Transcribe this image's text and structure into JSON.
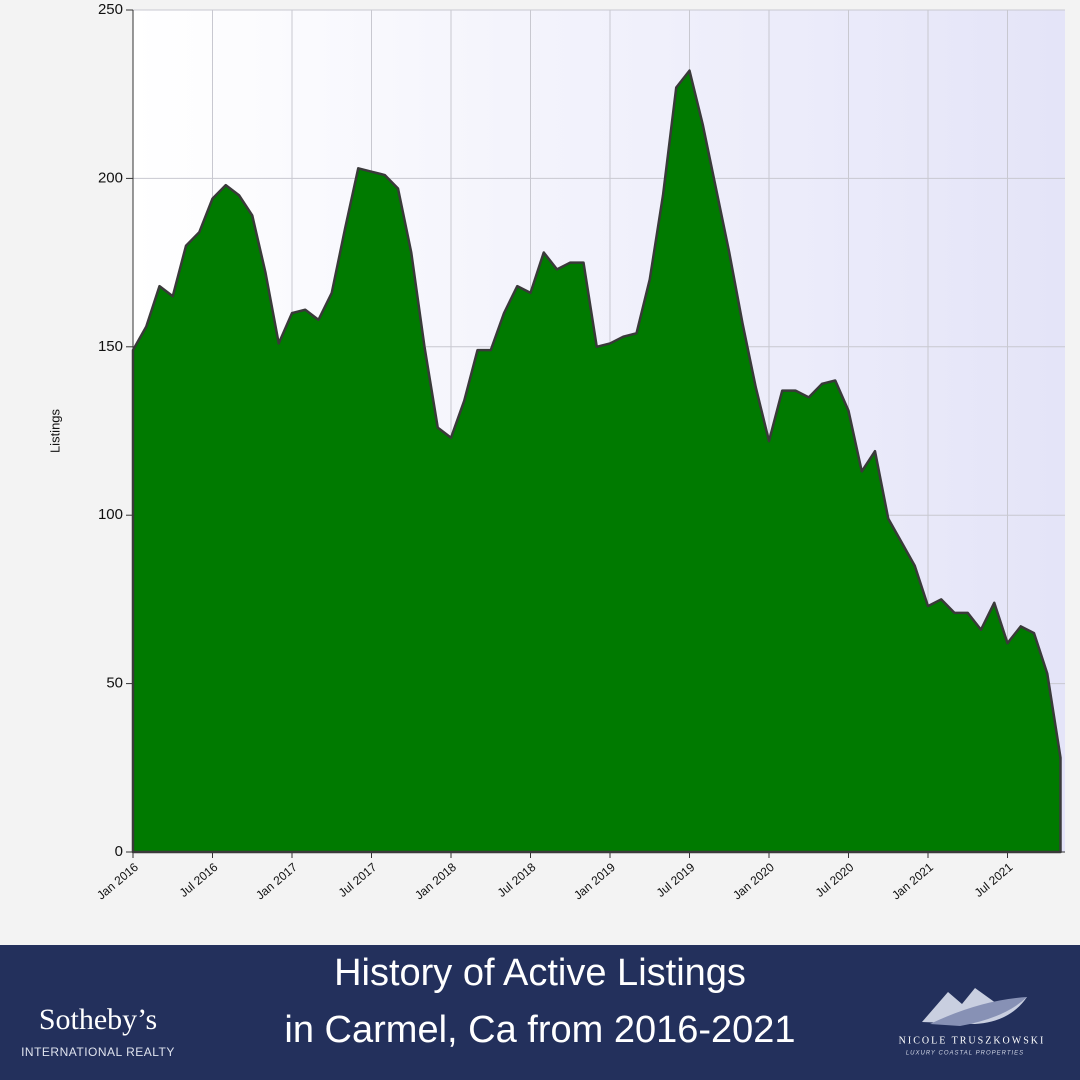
{
  "chart_data": {
    "type": "area",
    "y_label": "Listings",
    "categories": [
      "Jan 2016",
      null,
      null,
      null,
      null,
      null,
      "Jul 2016",
      null,
      null,
      null,
      null,
      null,
      "Jan 2017",
      null,
      null,
      null,
      null,
      null,
      "Jul 2017",
      null,
      null,
      null,
      null,
      null,
      "Jan 2018",
      null,
      null,
      null,
      null,
      null,
      "Jul 2018",
      null,
      null,
      null,
      null,
      null,
      "Jan 2019",
      null,
      null,
      null,
      null,
      null,
      "Jul 2019",
      null,
      null,
      null,
      null,
      null,
      "Jan 2020",
      null,
      null,
      null,
      null,
      null,
      "Jul 2020",
      null,
      null,
      null,
      null,
      null,
      "Jan 2021",
      null,
      null,
      null,
      null,
      null,
      "Jul 2021",
      null,
      null,
      null,
      null
    ],
    "series": [
      {
        "name": "Listings",
        "color": "#007a00",
        "values": [
          149,
          156,
          168,
          165,
          180,
          184,
          194,
          198,
          195,
          189,
          172,
          151,
          160,
          161,
          158,
          166,
          185,
          203,
          202,
          201,
          197,
          178,
          150,
          126,
          123,
          134,
          149,
          149,
          160,
          168,
          166,
          178,
          173,
          175,
          175,
          150,
          151,
          153,
          154,
          170,
          195,
          227,
          232,
          216,
          197,
          178,
          157,
          138,
          122,
          137,
          137,
          135,
          139,
          140,
          131,
          113,
          119,
          99,
          92,
          85,
          73,
          75,
          71,
          71,
          66,
          74,
          62,
          67,
          65,
          53,
          28
        ]
      }
    ],
    "ylim": [
      0,
      250
    ],
    "yticks": [
      0,
      50,
      100,
      150,
      200,
      250
    ],
    "grid": true
  },
  "footer": {
    "title": [
      "History of Active Listings",
      "in Carmel, Ca from 2016-2021"
    ],
    "brand_left": {
      "name": "Sotheby’s",
      "sub": "INTERNATIONAL REALTY"
    },
    "brand_right": {
      "name": "NICOLE TRUSZKOWSKI",
      "sub": "LUXURY COASTAL PROPERTIES"
    }
  }
}
